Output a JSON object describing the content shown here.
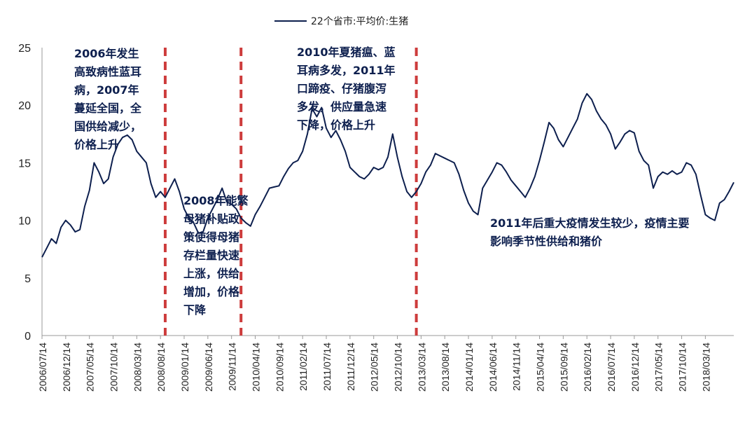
{
  "chart_data": {
    "type": "line",
    "legend": {
      "label": "22个省市:平均价:生猪",
      "placement": "top-center"
    },
    "ylim": [
      0,
      25
    ],
    "yticks": [
      0,
      5,
      10,
      15,
      20,
      25
    ],
    "xticks": [
      "2006/07/14",
      "2006/12/14",
      "2007/05/14",
      "2007/10/14",
      "2008/03/14",
      "2008/08/14",
      "2009/01/14",
      "2009/06/14",
      "2009/11/14",
      "2010/04/14",
      "2010/09/14",
      "2011/02/14",
      "2011/07/14",
      "2011/12/14",
      "2012/05/14",
      "2012/10/14",
      "2013/03/14",
      "2013/08/14",
      "2014/01/14",
      "2014/06/14",
      "2014/11/14",
      "2015/04/14",
      "2015/09/14",
      "2016/02/14",
      "2016/07/14",
      "2016/12/14",
      "2017/05/14",
      "2017/10/14",
      "2018/03/14"
    ],
    "x_start": "2006/07/14",
    "x_end": "2018/09/14",
    "series": [
      {
        "name": "22个省市:平均价:生猪",
        "color": "#0d1f4e",
        "points": [
          [
            "2006/07/14",
            6.8
          ],
          [
            "2006/08/14",
            7.6
          ],
          [
            "2006/09/14",
            8.4
          ],
          [
            "2006/10/14",
            8.0
          ],
          [
            "2006/11/14",
            9.4
          ],
          [
            "2006/12/14",
            10.0
          ],
          [
            "2007/01/14",
            9.6
          ],
          [
            "2007/02/14",
            9.0
          ],
          [
            "2007/03/14",
            9.2
          ],
          [
            "2007/04/14",
            11.2
          ],
          [
            "2007/05/14",
            12.6
          ],
          [
            "2007/06/14",
            15.0
          ],
          [
            "2007/07/14",
            14.2
          ],
          [
            "2007/08/14",
            13.2
          ],
          [
            "2007/09/14",
            13.6
          ],
          [
            "2007/10/14",
            15.5
          ],
          [
            "2007/11/14",
            16.6
          ],
          [
            "2007/12/14",
            17.2
          ],
          [
            "2008/01/14",
            17.4
          ],
          [
            "2008/02/14",
            17.0
          ],
          [
            "2008/03/14",
            16.0
          ],
          [
            "2008/04/14",
            15.5
          ],
          [
            "2008/05/14",
            15.0
          ],
          [
            "2008/06/14",
            13.2
          ],
          [
            "2008/07/14",
            12.0
          ],
          [
            "2008/08/14",
            12.5
          ],
          [
            "2008/09/14",
            12.0
          ],
          [
            "2008/10/14",
            12.8
          ],
          [
            "2008/11/14",
            13.6
          ],
          [
            "2008/12/14",
            12.5
          ],
          [
            "2009/01/14",
            11.0
          ],
          [
            "2009/02/14",
            10.2
          ],
          [
            "2009/03/14",
            9.8
          ],
          [
            "2009/04/14",
            8.9
          ],
          [
            "2009/05/14",
            9.0
          ],
          [
            "2009/06/14",
            10.2
          ],
          [
            "2009/07/14",
            11.0
          ],
          [
            "2009/08/14",
            11.8
          ],
          [
            "2009/09/14",
            12.8
          ],
          [
            "2009/10/14",
            11.6
          ],
          [
            "2009/11/14",
            11.4
          ],
          [
            "2009/12/14",
            11.0
          ],
          [
            "2010/01/14",
            10.2
          ],
          [
            "2010/02/14",
            9.8
          ],
          [
            "2010/03/14",
            9.5
          ],
          [
            "2010/04/14",
            10.5
          ],
          [
            "2010/05/14",
            11.2
          ],
          [
            "2010/06/14",
            12.0
          ],
          [
            "2010/07/14",
            12.8
          ],
          [
            "2010/08/14",
            12.9
          ],
          [
            "2010/09/14",
            13.0
          ],
          [
            "2010/10/14",
            13.8
          ],
          [
            "2010/11/14",
            14.5
          ],
          [
            "2010/12/14",
            15.0
          ],
          [
            "2011/01/14",
            15.2
          ],
          [
            "2011/02/14",
            16.0
          ],
          [
            "2011/03/14",
            17.5
          ],
          [
            "2011/04/14",
            19.7
          ],
          [
            "2011/05/14",
            19.0
          ],
          [
            "2011/06/14",
            19.8
          ],
          [
            "2011/07/14",
            18.0
          ],
          [
            "2011/08/14",
            17.2
          ],
          [
            "2011/09/14",
            17.8
          ],
          [
            "2011/10/14",
            17.0
          ],
          [
            "2011/11/14",
            16.0
          ],
          [
            "2011/12/14",
            14.6
          ],
          [
            "2012/01/14",
            14.2
          ],
          [
            "2012/02/14",
            13.8
          ],
          [
            "2012/03/14",
            13.6
          ],
          [
            "2012/04/14",
            14.0
          ],
          [
            "2012/05/14",
            14.6
          ],
          [
            "2012/06/14",
            14.4
          ],
          [
            "2012/07/14",
            14.6
          ],
          [
            "2012/08/14",
            15.5
          ],
          [
            "2012/09/14",
            17.5
          ],
          [
            "2012/10/14",
            15.5
          ],
          [
            "2012/11/14",
            13.8
          ],
          [
            "2012/12/14",
            12.5
          ],
          [
            "2013/01/14",
            12.0
          ],
          [
            "2013/02/14",
            12.5
          ],
          [
            "2013/03/14",
            13.2
          ],
          [
            "2013/04/14",
            14.2
          ],
          [
            "2013/05/14",
            14.8
          ],
          [
            "2013/06/14",
            15.8
          ],
          [
            "2013/07/14",
            15.6
          ],
          [
            "2013/08/14",
            15.4
          ],
          [
            "2013/09/14",
            15.2
          ],
          [
            "2013/10/14",
            15.0
          ],
          [
            "2013/11/14",
            14.0
          ],
          [
            "2013/12/14",
            12.6
          ],
          [
            "2014/01/14",
            11.5
          ],
          [
            "2014/02/14",
            10.8
          ],
          [
            "2014/03/14",
            10.5
          ],
          [
            "2014/04/14",
            12.8
          ],
          [
            "2014/05/14",
            13.5
          ],
          [
            "2014/06/14",
            14.2
          ],
          [
            "2014/07/14",
            15.0
          ],
          [
            "2014/08/14",
            14.8
          ],
          [
            "2014/09/14",
            14.2
          ],
          [
            "2014/10/14",
            13.5
          ],
          [
            "2014/11/14",
            13.0
          ],
          [
            "2014/12/14",
            12.5
          ],
          [
            "2015/01/14",
            12.0
          ],
          [
            "2015/02/14",
            12.8
          ],
          [
            "2015/03/14",
            13.8
          ],
          [
            "2015/04/14",
            15.2
          ],
          [
            "2015/05/14",
            16.8
          ],
          [
            "2015/06/14",
            18.5
          ],
          [
            "2015/07/14",
            18.0
          ],
          [
            "2015/08/14",
            17.0
          ],
          [
            "2015/09/14",
            16.4
          ],
          [
            "2015/10/14",
            17.2
          ],
          [
            "2015/11/14",
            18.0
          ],
          [
            "2015/12/14",
            18.8
          ],
          [
            "2016/01/14",
            20.2
          ],
          [
            "2016/02/14",
            21.0
          ],
          [
            "2016/03/14",
            20.5
          ],
          [
            "2016/04/14",
            19.5
          ],
          [
            "2016/05/14",
            18.8
          ],
          [
            "2016/06/14",
            18.3
          ],
          [
            "2016/07/14",
            17.5
          ],
          [
            "2016/08/14",
            16.2
          ],
          [
            "2016/09/14",
            16.8
          ],
          [
            "2016/10/14",
            17.5
          ],
          [
            "2016/11/14",
            17.8
          ],
          [
            "2016/12/14",
            17.6
          ],
          [
            "2017/01/14",
            16.0
          ],
          [
            "2017/02/14",
            15.2
          ],
          [
            "2017/03/14",
            14.8
          ],
          [
            "2017/04/14",
            12.8
          ],
          [
            "2017/05/14",
            13.8
          ],
          [
            "2017/06/14",
            14.2
          ],
          [
            "2017/07/14",
            14.0
          ],
          [
            "2017/08/14",
            14.3
          ],
          [
            "2017/09/14",
            14.0
          ],
          [
            "2017/10/14",
            14.2
          ],
          [
            "2017/11/14",
            15.0
          ],
          [
            "2017/12/14",
            14.8
          ],
          [
            "2018/01/14",
            14.0
          ],
          [
            "2018/02/14",
            12.2
          ],
          [
            "2018/03/14",
            10.5
          ],
          [
            "2018/04/14",
            10.2
          ],
          [
            "2018/05/14",
            10.0
          ],
          [
            "2018/06/14",
            11.5
          ],
          [
            "2018/07/14",
            11.8
          ],
          [
            "2018/08/14",
            12.5
          ],
          [
            "2018/09/14",
            13.3
          ]
        ]
      }
    ],
    "reference_lines": [
      {
        "x": "2008/09/14",
        "style": "dashed",
        "color": "#cd3c3c"
      },
      {
        "x": "2010/01/14",
        "style": "dashed",
        "color": "#cd3c3c"
      },
      {
        "x": "2013/02/14",
        "style": "dashed",
        "color": "#cd3c3c"
      }
    ],
    "annotations": [
      {
        "lines": [
          "2006年发生",
          "高致病性蓝耳",
          "病，2007年",
          "蔓延全国，全",
          "国供给减少，",
          "价格上升"
        ]
      },
      {
        "lines": [
          "2008年能繁",
          "母猪补贴政",
          "策使得母猪",
          "存栏量快速",
          "上涨，供给",
          "增加，价格",
          "下降"
        ]
      },
      {
        "lines": [
          "2010年夏猪瘟、蓝",
          "耳病多发，2011年",
          "口蹄疫、仔猪腹泻",
          "多发，供应量急速",
          "下降，价格上升"
        ]
      },
      {
        "lines": [
          "2011年后重大疫情发生较少，疫情主要",
          "影响季节性供给和猪价"
        ]
      }
    ],
    "grid": false
  }
}
